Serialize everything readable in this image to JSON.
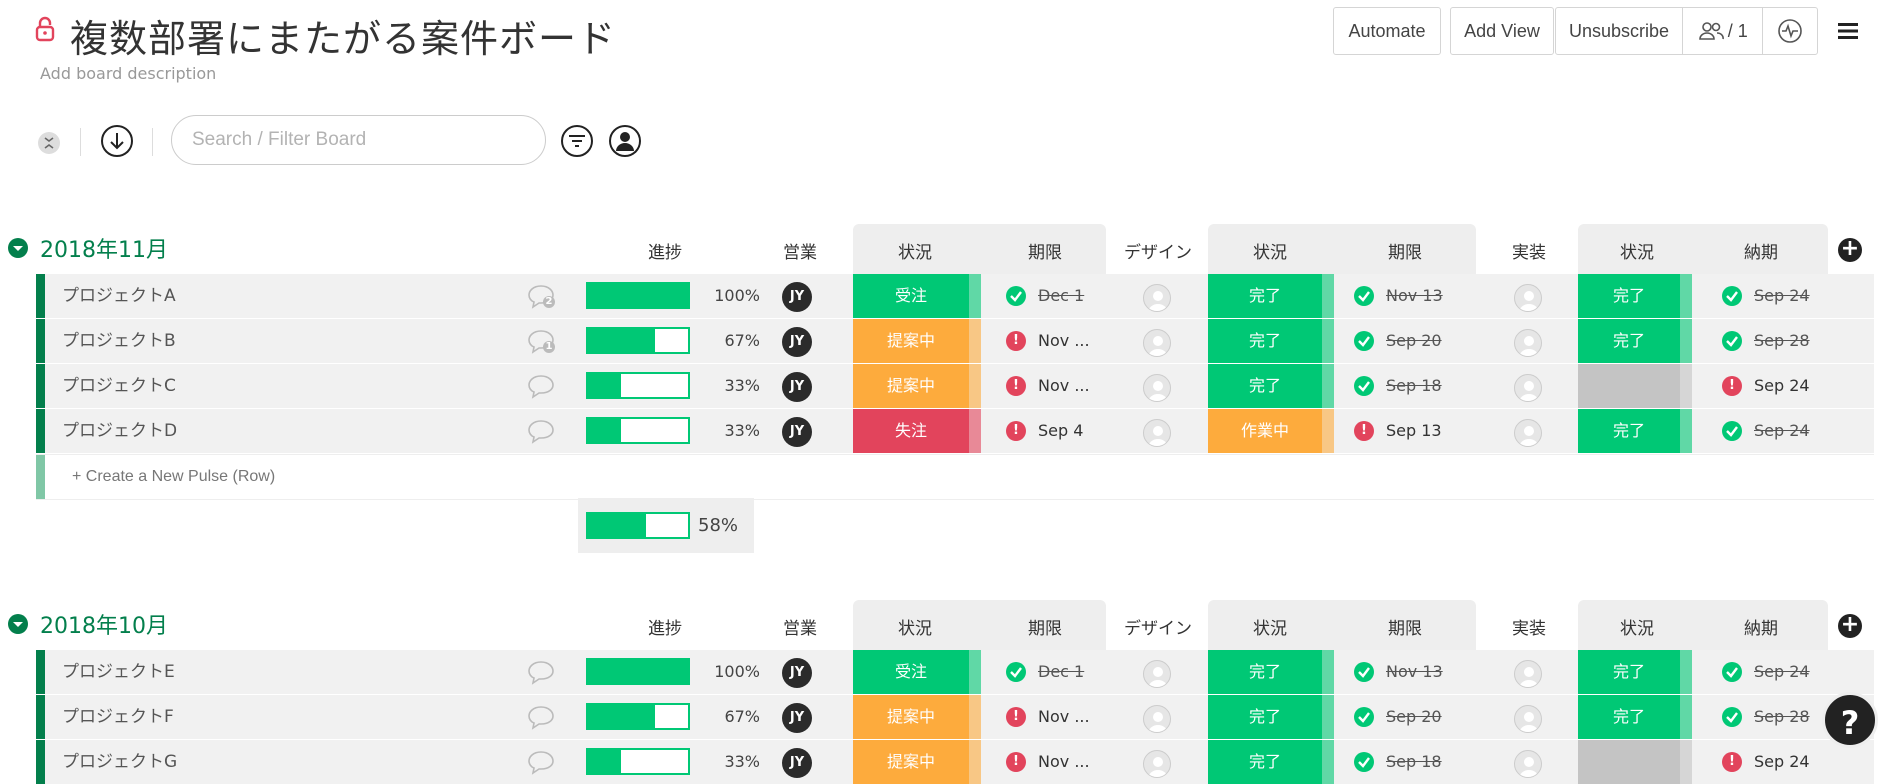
{
  "header": {
    "title": "複数部署にまたがる案件ボード",
    "description": "Add board description",
    "buttons": {
      "automate": "Automate",
      "add_view": "Add View",
      "unsubscribe": "Unsubscribe",
      "members": "/ 1"
    }
  },
  "toolbar": {
    "search_placeholder": "Search / Filter Board"
  },
  "columns": {
    "progress": "進捗",
    "sales": "営業",
    "status1": "状況",
    "deadline1": "期限",
    "design": "デザイン",
    "status2": "状況",
    "deadline2": "期限",
    "implementation": "実装",
    "status3": "状況",
    "delivery": "納期"
  },
  "colors": {
    "green": "#00c875",
    "orange": "#fdab3d",
    "red": "#e2445c",
    "gray": "#c4c4c4",
    "group_green": "#037f4c"
  },
  "groups": [
    {
      "title": "2018年11月",
      "rows": [
        {
          "name": "プロジェクトA",
          "progress": "100%",
          "progress_value": 100,
          "chat_count": "2",
          "sales": "JY",
          "status1": "受注",
          "status1_color": "#00c875",
          "deadline1_icon": "check",
          "deadline1": "Dec 1",
          "deadline1_struck": true,
          "status2": "完了",
          "status2_color": "#00c875",
          "deadline2_icon": "check",
          "deadline2": "Nov 13",
          "deadline2_struck": true,
          "status3": "完了",
          "status3_color": "#00c875",
          "delivery_icon": "check",
          "delivery": "Sep 24",
          "delivery_struck": true
        },
        {
          "name": "プロジェクトB",
          "progress": "67%",
          "progress_value": 67,
          "chat_count": "1",
          "sales": "JY",
          "status1": "提案中",
          "status1_color": "#fdab3d",
          "deadline1_icon": "alert",
          "deadline1": "Nov ...",
          "deadline1_struck": false,
          "status2": "完了",
          "status2_color": "#00c875",
          "deadline2_icon": "check",
          "deadline2": "Sep 20",
          "deadline2_struck": true,
          "status3": "完了",
          "status3_color": "#00c875",
          "delivery_icon": "check",
          "delivery": "Sep 28",
          "delivery_struck": true
        },
        {
          "name": "プロジェクトC",
          "progress": "33%",
          "progress_value": 33,
          "chat_count": "",
          "sales": "JY",
          "status1": "提案中",
          "status1_color": "#fdab3d",
          "deadline1_icon": "alert",
          "deadline1": "Nov ...",
          "deadline1_struck": false,
          "status2": "完了",
          "status2_color": "#00c875",
          "deadline2_icon": "check",
          "deadline2": "Sep 18",
          "deadline2_struck": true,
          "status3": "",
          "status3_color": "#c4c4c4",
          "delivery_icon": "alert",
          "delivery": "Sep 24",
          "delivery_struck": false
        },
        {
          "name": "プロジェクトD",
          "progress": "33%",
          "progress_value": 33,
          "chat_count": "",
          "sales": "JY",
          "status1": "失注",
          "status1_color": "#e2445c",
          "deadline1_icon": "alert",
          "deadline1": "Sep 4",
          "deadline1_struck": false,
          "status2": "作業中",
          "status2_color": "#fdab3d",
          "deadline2_icon": "alert",
          "deadline2": "Sep 13",
          "deadline2_struck": false,
          "status3": "完了",
          "status3_color": "#00c875",
          "delivery_icon": "check",
          "delivery": "Sep 24",
          "delivery_struck": true
        }
      ],
      "create_label": "+ Create a New Pulse (Row)",
      "summary_progress": "58%",
      "summary_progress_value": 58
    },
    {
      "title": "2018年10月",
      "rows": [
        {
          "name": "プロジェクトE",
          "progress": "100%",
          "progress_value": 100,
          "chat_count": "",
          "sales": "JY",
          "status1": "受注",
          "status1_color": "#00c875",
          "deadline1_icon": "check",
          "deadline1": "Dec 1",
          "deadline1_struck": true,
          "status2": "完了",
          "status2_color": "#00c875",
          "deadline2_icon": "check",
          "deadline2": "Nov 13",
          "deadline2_struck": true,
          "status3": "完了",
          "status3_color": "#00c875",
          "delivery_icon": "check",
          "delivery": "Sep 24",
          "delivery_struck": true
        },
        {
          "name": "プロジェクトF",
          "progress": "67%",
          "progress_value": 67,
          "chat_count": "",
          "sales": "JY",
          "status1": "提案中",
          "status1_color": "#fdab3d",
          "deadline1_icon": "alert",
          "deadline1": "Nov ...",
          "deadline1_struck": false,
          "status2": "完了",
          "status2_color": "#00c875",
          "deadline2_icon": "check",
          "deadline2": "Sep 20",
          "deadline2_struck": true,
          "status3": "完了",
          "status3_color": "#00c875",
          "delivery_icon": "check",
          "delivery": "Sep 28",
          "delivery_struck": true
        },
        {
          "name": "プロジェクトG",
          "progress": "33%",
          "progress_value": 33,
          "chat_count": "",
          "sales": "JY",
          "status1": "提案中",
          "status1_color": "#fdab3d",
          "deadline1_icon": "alert",
          "deadline1": "Nov ...",
          "deadline1_struck": false,
          "status2": "完了",
          "status2_color": "#00c875",
          "deadline2_icon": "check",
          "deadline2": "Sep 18",
          "deadline2_struck": true,
          "status3": "",
          "status3_color": "#c4c4c4",
          "delivery_icon": "alert",
          "delivery": "Sep 24",
          "delivery_struck": false
        }
      ]
    }
  ],
  "help": {
    "label": "?"
  }
}
